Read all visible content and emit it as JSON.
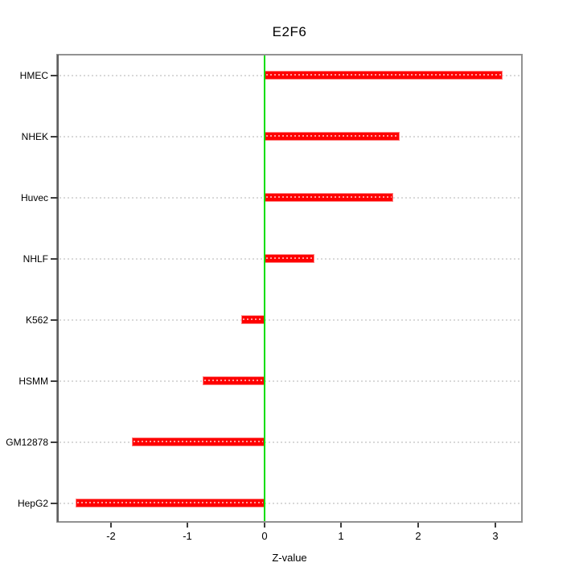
{
  "title": "E2F6",
  "chart_data": {
    "type": "bar",
    "orientation": "horizontal",
    "title": "E2F6",
    "xlabel": "Z-value",
    "ylabel": "",
    "categories": [
      "HMEC",
      "NHEK",
      "Huvec",
      "NHLF",
      "K562",
      "HSMM",
      "GM12878",
      "HepG2"
    ],
    "values": [
      3.1,
      1.76,
      1.68,
      0.65,
      -0.3,
      -0.81,
      -1.73,
      -2.46
    ],
    "xlim": [
      -2.69,
      3.34
    ],
    "x_ticks": [
      "-2",
      "-1",
      "0",
      "1",
      "2",
      "3"
    ],
    "x_tick_values": [
      -2,
      -1,
      0,
      1,
      2,
      3
    ],
    "baseline": 0,
    "grid": "dotted horizontal line per category",
    "legend": "none",
    "bar_color": "#fe0000",
    "bar_edge_color": "#ff8080",
    "zero_line_color": "#00dd00",
    "grid_dot_color": "#d9d9d9",
    "box_color": "#929292",
    "text_color": "#000000",
    "background_color": "#ffffff"
  }
}
